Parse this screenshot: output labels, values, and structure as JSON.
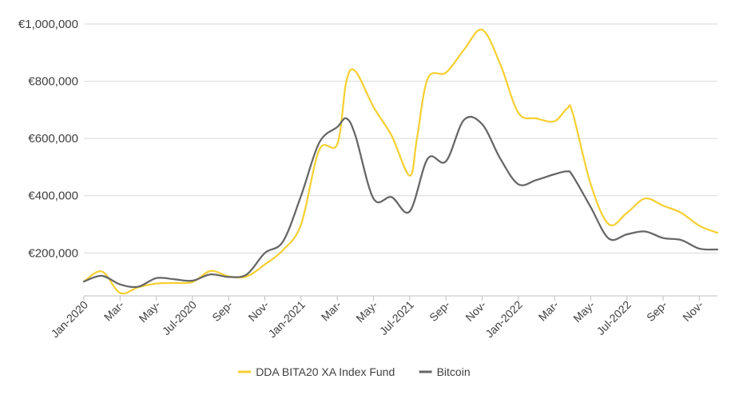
{
  "chart_data": {
    "type": "line",
    "title": "",
    "xlabel": "",
    "ylabel": "",
    "ylim": [
      50000,
      1000000
    ],
    "y_ticks": [
      200000,
      400000,
      600000,
      800000,
      1000000
    ],
    "y_tick_labels": [
      "€200,000",
      "€400,000",
      "€600,000",
      "€800,000",
      "€1,000,000"
    ],
    "x_ticks": [
      0,
      2,
      4,
      6,
      8,
      10,
      12,
      14,
      16,
      18,
      20,
      22,
      24,
      26,
      28,
      30,
      32,
      34
    ],
    "x_tick_labels": [
      "Jan-2020",
      "Mar-",
      "May-",
      "Jul-2020",
      "Sep-",
      "Nov-",
      "Jan-2021",
      "Mar-",
      "May-",
      "Jul-2021",
      "Sep-",
      "Nov-",
      "Jan-2022",
      "Mar-",
      "May-",
      "Jul-2022",
      "Sep-",
      "Nov-"
    ],
    "grid": true,
    "legend_position": "bottom",
    "series": [
      {
        "name": "DDA BITA20 XA Index Fund",
        "color": "#f5d033",
        "x": [
          0,
          1,
          2,
          3,
          4,
          5,
          6,
          7,
          8,
          9,
          10,
          11,
          12,
          13,
          14,
          14.5,
          15,
          16,
          17,
          18,
          18.4,
          19,
          20,
          21,
          22,
          23,
          24,
          25,
          26,
          26.7,
          27,
          28,
          29,
          30,
          31,
          32,
          33,
          34,
          35
        ],
        "y": [
          100000,
          135000,
          60000,
          80000,
          93000,
          95000,
          98000,
          137000,
          118000,
          118000,
          160000,
          210000,
          300000,
          560000,
          580000,
          800000,
          835000,
          710000,
          610000,
          470000,
          600000,
          810000,
          830000,
          910000,
          980000,
          860000,
          690000,
          670000,
          660000,
          705000,
          690000,
          440000,
          300000,
          340000,
          390000,
          365000,
          340000,
          295000,
          270000
        ]
      },
      {
        "name": "Bitcoin",
        "color": "#666666",
        "x": [
          0,
          1,
          2,
          3,
          4,
          5,
          6,
          7,
          8,
          9,
          10,
          11,
          12,
          13,
          14,
          14.5,
          15,
          16,
          17,
          18,
          19,
          20,
          21,
          22,
          23,
          24,
          25,
          26,
          26.7,
          27,
          28,
          29,
          30,
          31,
          32,
          33,
          34,
          35
        ],
        "y": [
          100000,
          120000,
          90000,
          82000,
          112000,
          108000,
          103000,
          125000,
          116000,
          125000,
          200000,
          240000,
          400000,
          585000,
          640000,
          670000,
          610000,
          390000,
          395000,
          345000,
          530000,
          520000,
          665000,
          650000,
          530000,
          440000,
          455000,
          475000,
          485000,
          470000,
          360000,
          250000,
          265000,
          275000,
          252000,
          245000,
          215000,
          212000
        ]
      }
    ]
  }
}
